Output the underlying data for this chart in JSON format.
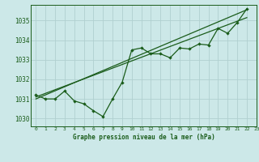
{
  "bg_color": "#cce8e8",
  "line_color": "#1a5c1a",
  "grid_color": "#b0d0d0",
  "text_color": "#1a5c1a",
  "xlim": [
    -0.5,
    23
  ],
  "ylim": [
    1029.6,
    1035.8
  ],
  "xticks": [
    0,
    1,
    2,
    3,
    4,
    5,
    6,
    7,
    8,
    9,
    10,
    11,
    12,
    13,
    14,
    15,
    16,
    17,
    18,
    19,
    20,
    21,
    22,
    23
  ],
  "yticks": [
    1030,
    1031,
    1032,
    1033,
    1034,
    1035
  ],
  "main_data": [
    [
      0,
      1031.2
    ],
    [
      1,
      1031.0
    ],
    [
      2,
      1031.0
    ],
    [
      3,
      1031.4
    ],
    [
      4,
      1030.9
    ],
    [
      5,
      1030.75
    ],
    [
      6,
      1030.4
    ],
    [
      7,
      1030.1
    ],
    [
      8,
      1031.0
    ],
    [
      9,
      1031.85
    ],
    [
      10,
      1033.5
    ],
    [
      11,
      1033.6
    ],
    [
      12,
      1033.3
    ],
    [
      13,
      1033.3
    ],
    [
      14,
      1033.1
    ],
    [
      15,
      1033.6
    ],
    [
      16,
      1033.55
    ],
    [
      17,
      1033.8
    ],
    [
      18,
      1033.75
    ],
    [
      19,
      1034.6
    ],
    [
      20,
      1034.35
    ],
    [
      21,
      1034.9
    ],
    [
      22,
      1035.6
    ]
  ],
  "trend_line": [
    [
      0,
      1031.1
    ],
    [
      22,
      1035.15
    ]
  ],
  "trend_line2": [
    [
      0,
      1031.0
    ],
    [
      22,
      1035.55
    ]
  ],
  "xlabel": "Graphe pression niveau de la mer (hPa)"
}
